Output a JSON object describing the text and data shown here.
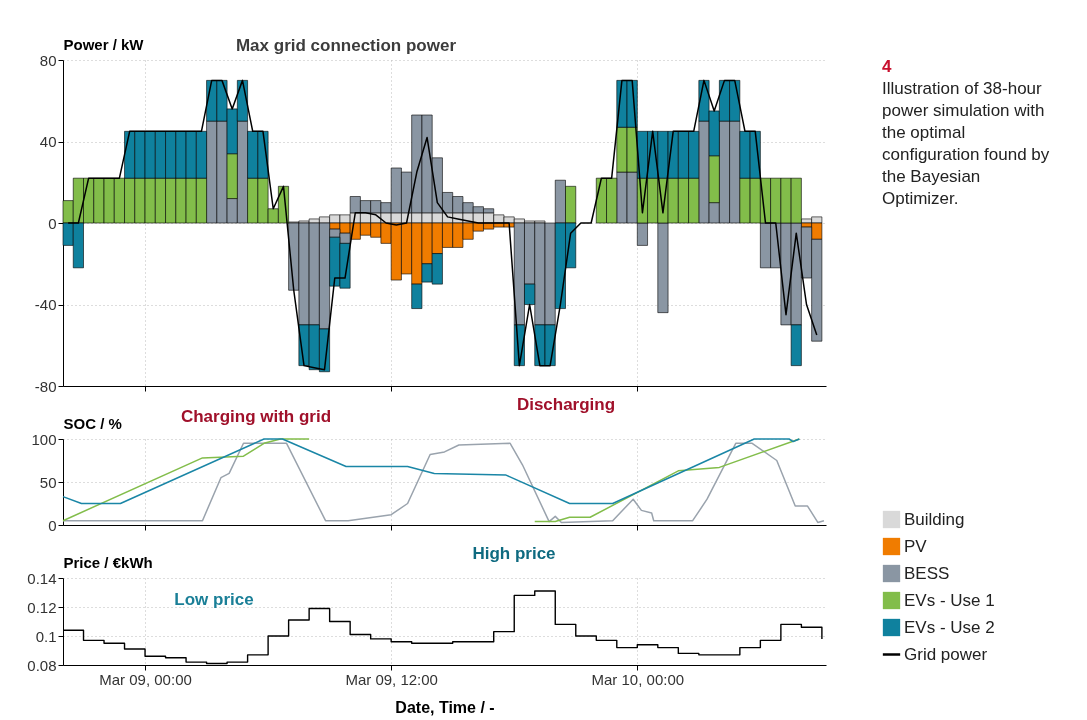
{
  "chart_data": [
    {
      "type": "bar",
      "stacked": true,
      "ylabel": "Power / kW",
      "legend": "right",
      "grid": true,
      "tick_labels": "y",
      "xlim": [
        "--03-08T20:00",
        "--03-10T09:12"
      ],
      "xticks": [
        {
          "value": "--03-09T00:00",
          "label": "Mar 09, 00:00"
        },
        {
          "value": "--03-09T12:00",
          "label": "Mar 09, 12:00"
        },
        {
          "value": "--03-10T00:00",
          "label": "Mar 10, 00:00"
        }
      ],
      "ylim": [
        -80,
        80
      ],
      "yticks": [
        -80,
        -40,
        0,
        40,
        80
      ],
      "x": [
        "--03-08T20:15",
        "--03-08T20:45",
        "--03-08T21:15",
        "--03-08T21:45",
        "--03-08T22:15",
        "--03-08T22:45",
        "--03-08T23:15",
        "--03-08T23:45",
        "--03-09T00:15",
        "--03-09T00:45",
        "--03-09T01:15",
        "--03-09T01:45",
        "--03-09T02:15",
        "--03-09T02:45",
        "--03-09T03:15",
        "--03-09T03:45",
        "--03-09T04:15",
        "--03-09T04:45",
        "--03-09T05:15",
        "--03-09T05:45",
        "--03-09T06:15",
        "--03-09T06:45",
        "--03-09T07:15",
        "--03-09T07:45",
        "--03-09T08:15",
        "--03-09T08:45",
        "--03-09T09:15",
        "--03-09T09:45",
        "--03-09T10:15",
        "--03-09T10:45",
        "--03-09T11:15",
        "--03-09T11:45",
        "--03-09T12:15",
        "--03-09T12:45",
        "--03-09T13:15",
        "--03-09T13:45",
        "--03-09T14:15",
        "--03-09T14:45",
        "--03-09T15:15",
        "--03-09T15:45",
        "--03-09T16:15",
        "--03-09T16:45",
        "--03-09T17:15",
        "--03-09T17:45",
        "--03-09T18:15",
        "--03-09T18:45",
        "--03-09T19:15",
        "--03-09T19:45",
        "--03-09T20:15",
        "--03-09T20:45",
        "--03-09T21:15",
        "--03-09T21:45",
        "--03-09T22:15",
        "--03-09T22:45",
        "--03-09T23:15",
        "--03-09T23:45",
        "--03-10T00:15",
        "--03-10T00:45",
        "--03-10T01:15",
        "--03-10T01:45",
        "--03-10T02:15",
        "--03-10T02:45",
        "--03-10T03:15",
        "--03-10T03:45",
        "--03-10T04:15",
        "--03-10T04:45",
        "--03-10T05:15",
        "--03-10T05:45",
        "--03-10T06:15",
        "--03-10T06:45",
        "--03-10T07:15",
        "--03-10T07:45",
        "--03-10T08:15",
        "--03-10T08:45"
      ],
      "series": [
        {
          "name": "Building",
          "color": "#d9d9d9",
          "values": [
            0,
            0,
            0,
            0,
            0,
            0,
            0,
            0,
            0,
            0,
            0,
            0,
            0,
            0,
            0,
            0,
            0,
            0,
            0,
            0,
            0,
            0,
            0.5,
            1,
            2,
            3,
            4,
            4,
            5,
            5,
            5,
            5,
            5,
            5,
            5,
            5,
            5,
            5,
            5,
            5,
            5,
            5,
            4,
            3,
            2,
            1,
            1,
            0,
            0,
            0,
            0,
            0,
            0,
            0,
            0,
            0,
            0,
            0,
            0,
            0,
            0,
            0,
            0,
            0,
            0,
            0,
            0,
            0,
            0,
            0,
            0,
            0,
            2,
            3
          ]
        },
        {
          "name": "PV",
          "color": "#f07c00",
          "values": [
            0,
            0,
            0,
            0,
            0,
            0,
            0,
            0,
            0,
            0,
            0,
            0,
            0,
            0,
            0,
            0,
            0,
            0,
            0,
            0,
            0,
            0,
            0,
            0,
            0,
            0,
            -3,
            -5,
            -8,
            -6,
            -7,
            -10,
            -28,
            -25,
            -30,
            -20,
            -15,
            -12,
            -12,
            -8,
            -4,
            -3,
            -2,
            -2,
            0,
            0,
            0,
            0,
            0,
            0,
            0,
            0,
            0,
            0,
            0,
            0,
            0,
            0,
            0,
            0,
            0,
            0,
            0,
            0,
            0,
            0,
            0,
            0,
            0,
            0,
            0,
            0,
            -2,
            -8
          ]
        },
        {
          "name": "BESS",
          "color": "#8a96a3",
          "values": [
            0,
            0,
            0,
            0,
            0,
            0,
            0,
            0,
            0,
            0,
            0,
            0,
            0,
            0,
            50,
            50,
            12,
            50,
            0,
            0,
            0,
            0,
            -33,
            -50,
            -50,
            -52,
            -4,
            -5,
            8,
            6,
            6,
            5,
            22,
            20,
            48,
            48,
            27,
            10,
            8,
            5,
            3,
            2,
            0,
            0,
            -50,
            -30,
            -50,
            -50,
            21,
            0,
            0,
            0,
            0,
            0,
            25,
            25,
            -11,
            0,
            -44,
            0,
            0,
            0,
            50,
            10,
            50,
            50,
            0,
            0,
            -22,
            -22,
            -50,
            -50,
            -25,
            -50
          ]
        },
        {
          "name": "EVs - Use 1",
          "color": "#82bd4a",
          "values": [
            11,
            22,
            22,
            22,
            22,
            22,
            22,
            22,
            22,
            22,
            22,
            22,
            22,
            22,
            0,
            0,
            22,
            0,
            22,
            22,
            7,
            18,
            0,
            0,
            0,
            0,
            0,
            0,
            0,
            0,
            0,
            0,
            0,
            0,
            0,
            0,
            0,
            0,
            0,
            0,
            0,
            0,
            0,
            0,
            0,
            0,
            0,
            0,
            0,
            18,
            0,
            0,
            22,
            22,
            22,
            22,
            22,
            22,
            22,
            22,
            22,
            22,
            0,
            23,
            0,
            0,
            22,
            22,
            22,
            22,
            22,
            22,
            0,
            0
          ]
        },
        {
          "name": "EVs - Use 2",
          "color": "#0f819e",
          "values": [
            -11,
            -22,
            0,
            0,
            0,
            0,
            23,
            23,
            23,
            23,
            23,
            23,
            23,
            23,
            20,
            20,
            22,
            20,
            23,
            23,
            0,
            0,
            0,
            -20,
            -22,
            -21,
            -24,
            -22,
            0,
            0,
            0,
            0,
            0,
            0,
            -12,
            -9,
            -15,
            0,
            0,
            0,
            0,
            0,
            0,
            0,
            -20,
            -10,
            -20,
            -20,
            -42,
            -22,
            0,
            0,
            0,
            0,
            23,
            23,
            23,
            23,
            23,
            23,
            23,
            23,
            20,
            22,
            20,
            20,
            23,
            23,
            0,
            0,
            0,
            -20,
            0,
            0
          ]
        },
        {
          "name": "Grid power",
          "type": "line",
          "color": "#000000",
          "values": [
            0,
            0,
            22,
            22,
            22,
            22,
            45,
            45,
            45,
            45,
            45,
            45,
            45,
            45,
            70,
            70,
            56,
            70,
            45,
            45,
            7,
            18,
            -33,
            -70,
            -71,
            -72,
            -27,
            -27,
            5,
            5,
            4,
            0,
            -1,
            0,
            25,
            42,
            10,
            3,
            2,
            1,
            0,
            0,
            0,
            0,
            -70,
            -40,
            -70,
            -70,
            -40,
            -5,
            0,
            0,
            22,
            22,
            70,
            70,
            5,
            45,
            5,
            45,
            45,
            45,
            70,
            55,
            70,
            70,
            45,
            45,
            0,
            0,
            -45,
            -5,
            -40,
            -55
          ]
        }
      ],
      "annotations": [
        "Max grid connection power",
        "Discharging",
        "4",
        "Illustration of 38-hour power simulation with the optimal configuration found by the Bayesian Optimizer."
      ]
    },
    {
      "type": "line",
      "ylabel": "SOC / %",
      "grid": true,
      "tick_labels": "y",
      "xlim": [
        "--03-08T20:00",
        "--03-10T09:12"
      ],
      "xticks": [
        {
          "value": "--03-09T00:00",
          "label": "Mar 09, 00:00"
        },
        {
          "value": "--03-09T12:00",
          "label": "Mar 09, 12:00"
        },
        {
          "value": "--03-10T00:00",
          "label": "Mar 10, 00:00"
        }
      ],
      "ylim": [
        0,
        100
      ],
      "yticks": [
        0,
        50,
        100
      ],
      "series": [
        {
          "color": "#9aa3ad",
          "x": [
            "--03-08T20:00",
            "--03-09T02:48",
            "--03-09T03:42",
            "--03-09T04:06",
            "--03-09T04:48",
            "--03-09T06:54",
            "--03-09T08:48",
            "--03-09T09:54",
            "--03-09T12:00",
            "--03-09T12:48",
            "--03-09T13:54",
            "--03-09T14:36",
            "--03-09T15:18",
            "--03-09T17:48",
            "--03-09T18:24",
            "--03-09T19:42",
            "--03-09T20:00",
            "--03-09T20:18",
            "--03-09T22:48",
            "--03-09T23:48",
            "--03-10T00:12",
            "--03-10T00:42",
            "--03-10T00:48",
            "--03-10T02:42",
            "--03-10T03:24",
            "--03-10T04:48",
            "--03-10T05:36",
            "--03-10T06:48",
            "--03-10T07:42",
            "--03-10T08:18",
            "--03-10T08:48",
            "--03-10T09:06"
          ],
          "values": [
            5,
            5,
            55,
            60,
            95,
            95,
            5,
            5,
            12,
            25,
            82,
            85,
            93,
            95,
            70,
            4,
            10,
            3,
            5,
            30,
            17,
            14,
            5,
            5,
            30,
            95,
            95,
            75,
            22,
            22,
            3,
            5
          ]
        },
        {
          "color": "#82bd4a",
          "x": [
            "--03-08T20:00",
            "--03-09T02:48",
            "--03-09T04:48",
            "--03-09T05:48",
            "--03-09T06:36",
            "--03-09T08:00",
            "--03-09T08:30",
            "--03-09T19:00",
            "--03-09T20:00",
            "--03-09T20:42",
            "--03-09T21:42",
            "--03-10T02:00",
            "--03-10T04:00",
            "--03-10T07:54"
          ],
          "values": [
            5,
            78,
            80,
            95,
            100,
            100,
            null,
            4,
            4,
            9,
            9,
            63,
            67,
            100
          ]
        },
        {
          "color": "#1a86a6",
          "x": [
            "--03-08T20:00",
            "--03-08T20:54",
            "--03-08T22:48",
            "--03-09T05:48",
            "--03-09T06:42",
            "--03-09T09:48",
            "--03-09T12:48",
            "--03-09T14:06",
            "--03-09T17:36",
            "--03-09T20:42",
            "--03-09T22:48",
            "--03-10T05:42",
            "--03-10T07:24",
            "--03-10T07:36",
            "--03-10T07:54"
          ],
          "values": [
            33,
            25,
            25,
            100,
            100,
            68,
            68,
            60,
            58,
            25,
            25,
            100,
            100,
            97,
            100
          ]
        }
      ],
      "annotations": [
        "Charging with grid"
      ]
    },
    {
      "type": "step",
      "ylabel": "Price / €kWh",
      "xlabel": "Date, Time / -",
      "grid": true,
      "xlim": [
        "--03-08T20:00",
        "--03-10T09:12"
      ],
      "xticks": [
        {
          "value": "--03-09T00:00",
          "label": "Mar 09, 00:00"
        },
        {
          "value": "--03-09T12:00",
          "label": "Mar 09, 12:00"
        },
        {
          "value": "--03-10T00:00",
          "label": "Mar 10, 00:00"
        }
      ],
      "ylim": [
        0.08,
        0.14
      ],
      "yticks": [
        0.08,
        0.1,
        0.12,
        0.14
      ],
      "series": [
        {
          "color": "#000000",
          "x": [
            "--03-08T20:00",
            "--03-08T21:00",
            "--03-08T22:00",
            "--03-08T23:00",
            "--03-09T00:00",
            "--03-09T01:00",
            "--03-09T02:00",
            "--03-09T03:00",
            "--03-09T04:00",
            "--03-09T05:00",
            "--03-09T06:00",
            "--03-09T07:00",
            "--03-09T08:00",
            "--03-09T09:00",
            "--03-09T10:00",
            "--03-09T11:00",
            "--03-09T12:00",
            "--03-09T13:00",
            "--03-09T15:00",
            "--03-09T17:00",
            "--03-09T18:00",
            "--03-09T19:00",
            "--03-09T20:00",
            "--03-09T21:00",
            "--03-09T22:00",
            "--03-09T23:00",
            "--03-10T00:00",
            "--03-10T01:00",
            "--03-10T02:00",
            "--03-10T03:00",
            "--03-10T05:00",
            "--03-10T06:00",
            "--03-10T07:00",
            "--03-10T08:00",
            "--03-10T09:00"
          ],
          "values": [
            0.104,
            0.097,
            0.095,
            0.091,
            0.086,
            0.085,
            0.082,
            0.081,
            0.082,
            0.087,
            0.1,
            0.111,
            0.119,
            0.11,
            0.101,
            0.098,
            0.096,
            0.095,
            0.096,
            0.103,
            0.128,
            0.131,
            0.108,
            0.1,
            0.097,
            0.092,
            0.094,
            0.092,
            0.088,
            0.087,
            0.092,
            0.097,
            0.108,
            0.106,
            0.098
          ]
        }
      ],
      "annotations": [
        "Low price",
        "High price"
      ]
    }
  ]
}
